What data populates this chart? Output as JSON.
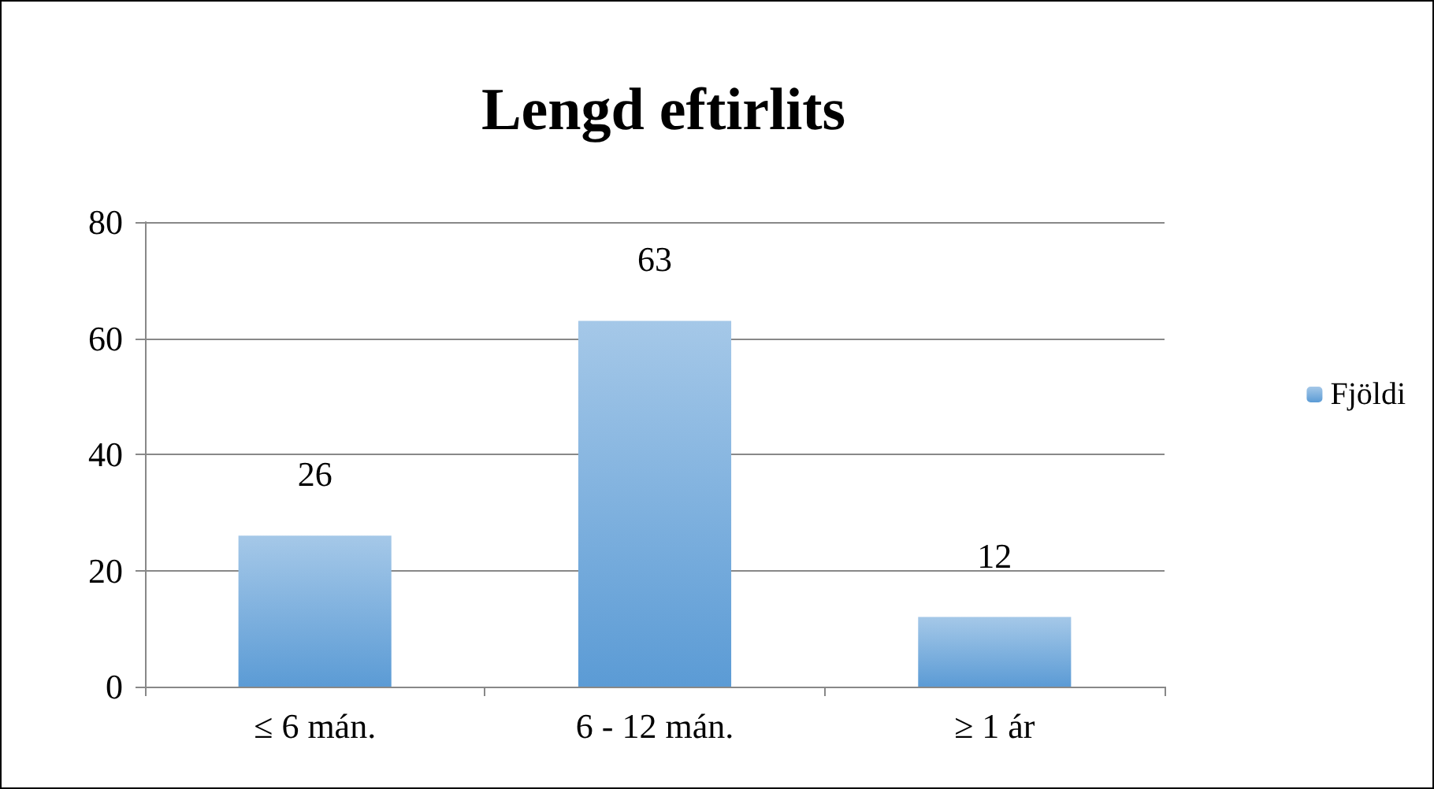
{
  "chart_data": {
    "type": "bar",
    "title": "Lengd eftirlits",
    "categories": [
      "≤ 6 mán.",
      "6 - 12 mán.",
      "≥ 1 ár"
    ],
    "series": [
      {
        "name": "Fjöldi",
        "color": "#5b9bd5",
        "values": [
          26,
          63,
          12
        ]
      }
    ],
    "ylim": [
      0,
      80
    ],
    "yticks": [
      0,
      20,
      40,
      60,
      80
    ],
    "grid": "y",
    "legend": "right",
    "data_labels": true
  }
}
